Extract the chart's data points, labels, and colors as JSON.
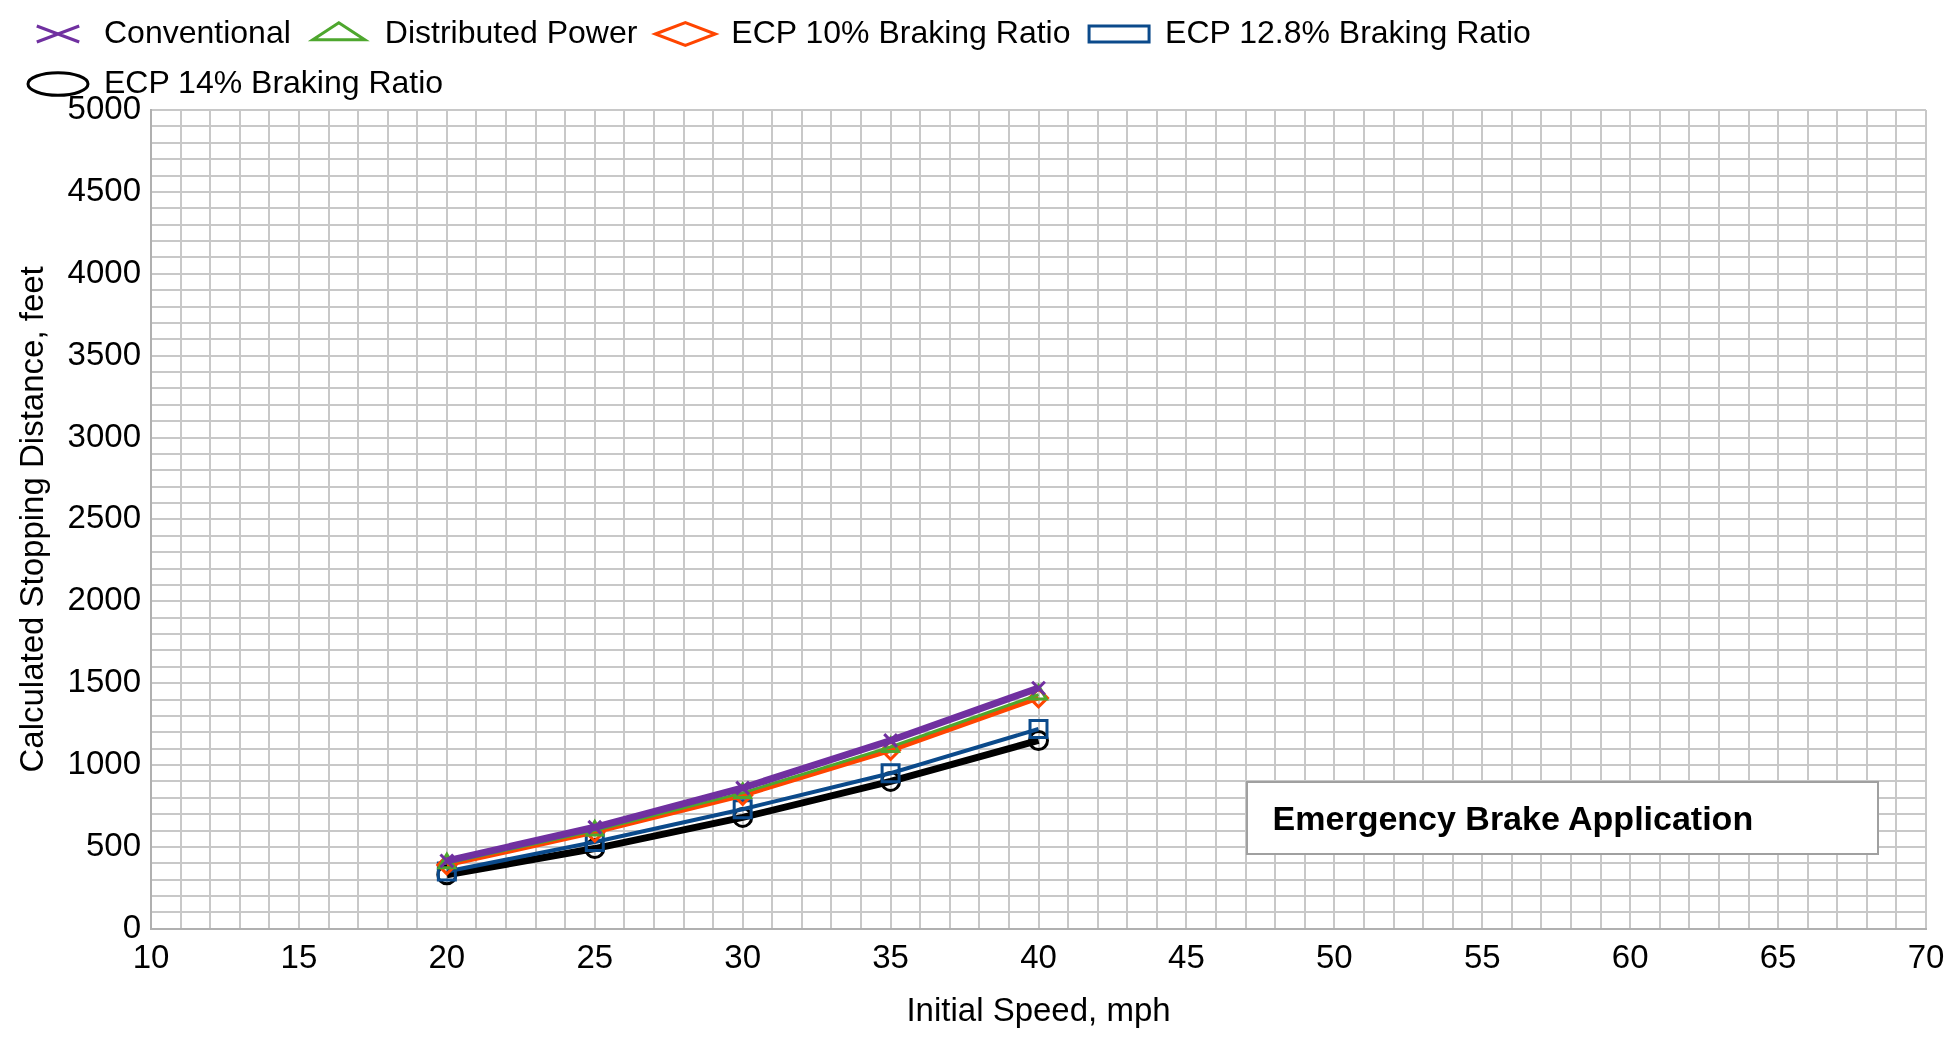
{
  "chart_data": {
    "type": "line",
    "xlabel": "Initial Speed, mph",
    "ylabel": "Calculated Stopping Distance, feet",
    "x": [
      20,
      25,
      30,
      35,
      40
    ],
    "series": [
      {
        "name": "Conventional",
        "color": "#7030a0",
        "marker": "cross",
        "values": [
          415,
          620,
          860,
          1150,
          1470
        ]
      },
      {
        "name": "Distributed Power",
        "color": "#4ea72e",
        "marker": "triangle",
        "values": [
          400,
          600,
          830,
          1110,
          1430
        ]
      },
      {
        "name": "ECP 10% Braking Ratio",
        "color": "#ff4500",
        "marker": "diamond",
        "values": [
          390,
          590,
          815,
          1090,
          1410
        ]
      },
      {
        "name": "ECP 12.8% Braking Ratio",
        "color": "#0b4a8b",
        "marker": "square",
        "values": [
          350,
          530,
          730,
          950,
          1220
        ]
      },
      {
        "name": "ECP 14% Braking Ratio",
        "color": "#000000",
        "marker": "circle",
        "values": [
          330,
          490,
          680,
          900,
          1150
        ]
      }
    ],
    "xlim": [
      10,
      70
    ],
    "xticks": [
      10,
      {
        "value": 11,
        "label": null
      },
      {
        "value": 12,
        "label": null
      },
      {
        "value": 13,
        "label": null
      },
      {
        "value": 14,
        "label": null
      },
      15,
      {
        "value": 16,
        "label": null
      },
      {
        "value": 17,
        "label": null
      },
      {
        "value": 18,
        "label": null
      },
      {
        "value": 19,
        "label": null
      },
      20,
      {
        "value": 21,
        "label": null
      },
      {
        "value": 22,
        "label": null
      },
      {
        "value": 23,
        "label": null
      },
      {
        "value": 24,
        "label": null
      },
      25,
      {
        "value": 26,
        "label": null
      },
      {
        "value": 27,
        "label": null
      },
      {
        "value": 28,
        "label": null
      },
      {
        "value": 29,
        "label": null
      },
      30,
      {
        "value": 31,
        "label": null
      },
      {
        "value": 32,
        "label": null
      },
      {
        "value": 33,
        "label": null
      },
      {
        "value": 34,
        "label": null
      },
      35,
      {
        "value": 36,
        "label": null
      },
      {
        "value": 37,
        "label": null
      },
      {
        "value": 38,
        "label": null
      },
      {
        "value": 39,
        "label": null
      },
      40,
      {
        "value": 41,
        "label": null
      },
      {
        "value": 42,
        "label": null
      },
      {
        "value": 43,
        "label": null
      },
      {
        "value": 44,
        "label": null
      },
      45,
      {
        "value": 46,
        "label": null
      },
      {
        "value": 47,
        "label": null
      },
      {
        "value": 48,
        "label": null
      },
      {
        "value": 49,
        "label": null
      },
      50,
      {
        "value": 51,
        "label": null
      },
      {
        "value": 52,
        "label": null
      },
      {
        "value": 53,
        "label": null
      },
      {
        "value": 54,
        "label": null
      },
      55,
      {
        "value": 56,
        "label": null
      },
      {
        "value": 57,
        "label": null
      },
      {
        "value": 58,
        "label": null
      },
      {
        "value": 59,
        "label": null
      },
      60,
      {
        "value": 61,
        "label": null
      },
      {
        "value": 62,
        "label": null
      },
      {
        "value": 63,
        "label": null
      },
      {
        "value": 64,
        "label": null
      },
      65,
      {
        "value": 66,
        "label": null
      },
      {
        "value": 67,
        "label": null
      },
      {
        "value": 68,
        "label": null
      },
      {
        "value": 69,
        "label": null
      },
      70
    ],
    "ylim": [
      0,
      5000
    ],
    "yticks": [
      0,
      {
        "value": 100,
        "label": null
      },
      {
        "value": 200,
        "label": null
      },
      {
        "value": 300,
        "label": null
      },
      {
        "value": 400,
        "label": null
      },
      500,
      {
        "value": 600,
        "label": null
      },
      {
        "value": 700,
        "label": null
      },
      {
        "value": 800,
        "label": null
      },
      {
        "value": 900,
        "label": null
      },
      1000,
      {
        "value": 1100,
        "label": null
      },
      {
        "value": 1200,
        "label": null
      },
      {
        "value": 1300,
        "label": null
      },
      {
        "value": 1400,
        "label": null
      },
      1500,
      {
        "value": 1600,
        "label": null
      },
      {
        "value": 1700,
        "label": null
      },
      {
        "value": 1800,
        "label": null
      },
      {
        "value": 1900,
        "label": null
      },
      2000,
      {
        "value": 2100,
        "label": null
      },
      {
        "value": 2200,
        "label": null
      },
      {
        "value": 2300,
        "label": null
      },
      {
        "value": 2400,
        "label": null
      },
      2500,
      {
        "value": 2600,
        "label": null
      },
      {
        "value": 2700,
        "label": null
      },
      {
        "value": 2800,
        "label": null
      },
      {
        "value": 2900,
        "label": null
      },
      3000,
      {
        "value": 3100,
        "label": null
      },
      {
        "value": 3200,
        "label": null
      },
      {
        "value": 3300,
        "label": null
      },
      {
        "value": 3400,
        "label": null
      },
      3500,
      {
        "value": 3600,
        "label": null
      },
      {
        "value": 3700,
        "label": null
      },
      {
        "value": 3800,
        "label": null
      },
      {
        "value": 3900,
        "label": null
      },
      4000,
      {
        "value": 4100,
        "label": null
      },
      {
        "value": 4200,
        "label": null
      },
      {
        "value": 4300,
        "label": null
      },
      {
        "value": 4400,
        "label": null
      },
      4500,
      {
        "value": 4600,
        "label": null
      },
      {
        "value": 4700,
        "label": null
      },
      {
        "value": 4800,
        "label": null
      },
      {
        "value": 4900,
        "label": null
      },
      5000
    ],
    "grid": true,
    "legend": "top",
    "line_style": "solid",
    "annotations": [
      "Emergency Brake Application"
    ]
  }
}
